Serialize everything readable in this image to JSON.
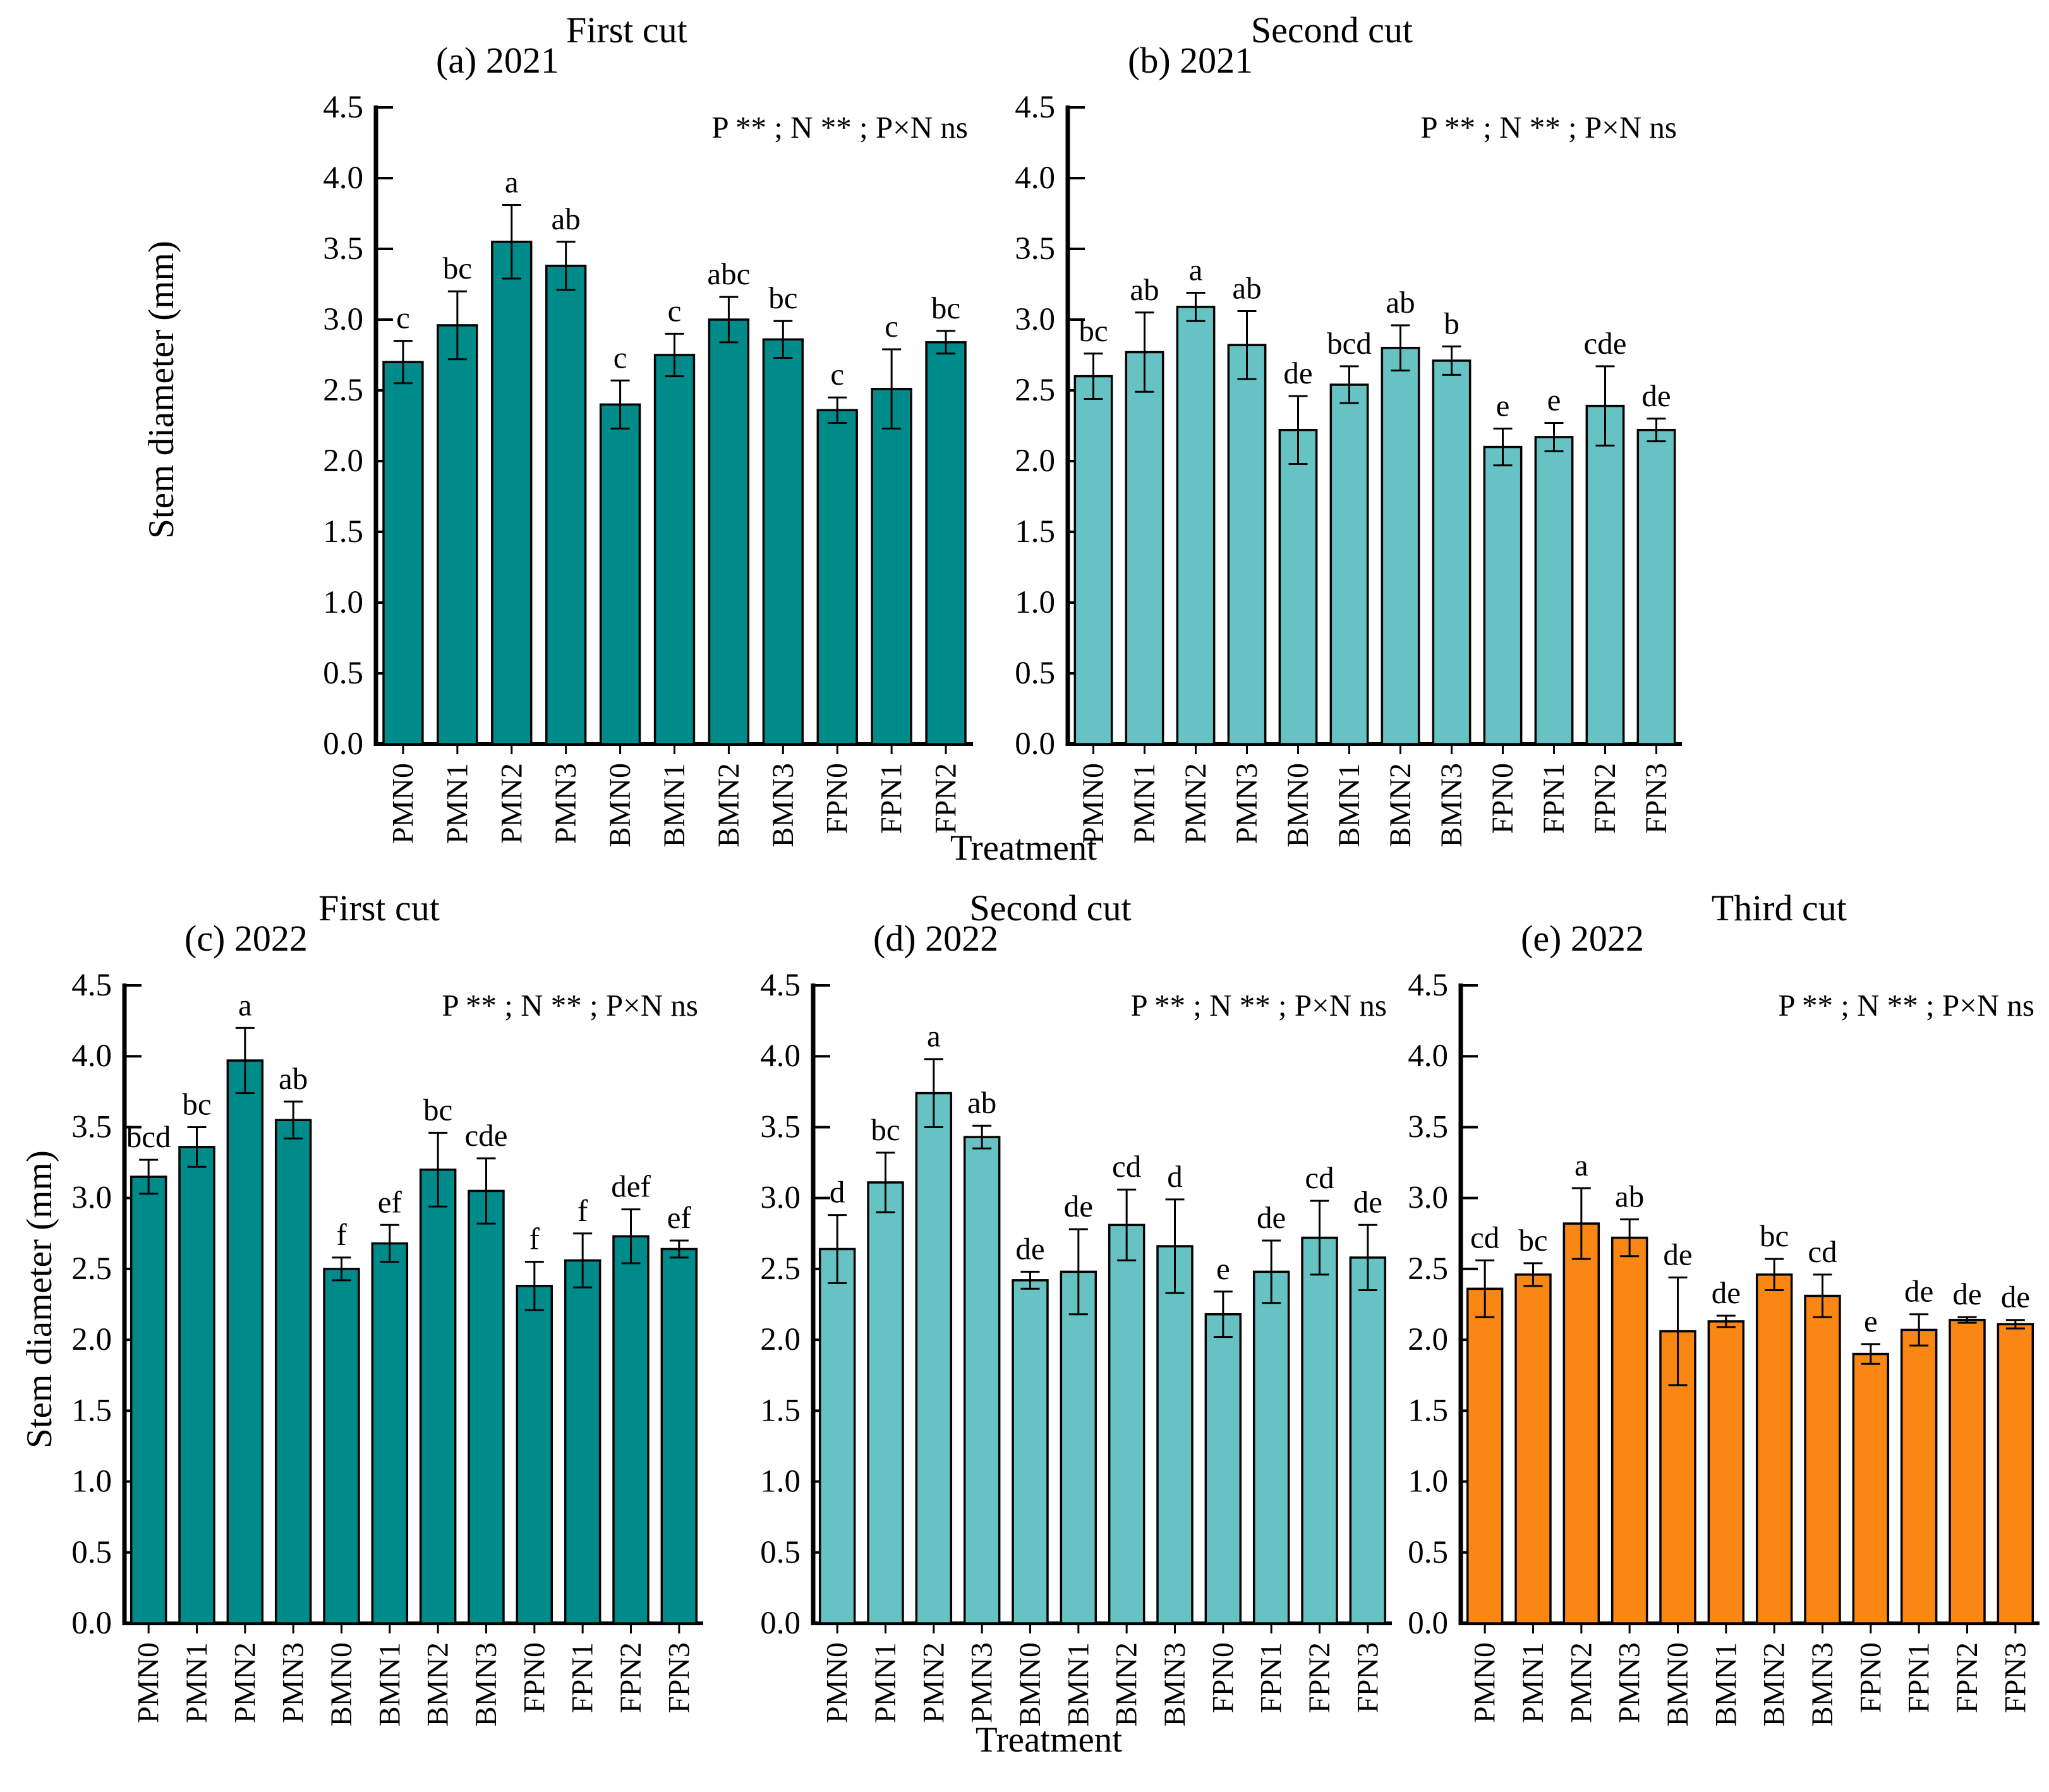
{
  "figure": {
    "ylabel": "Stem diameter (mm)",
    "xlabel": "Treatment"
  },
  "chart_data": [
    {
      "id": "a",
      "type": "bar",
      "panel_label": "(a) 2021",
      "title": "First cut",
      "annotation": "P ** ; N ** ; P×N ns",
      "bar_color": "#008B8B",
      "ylim": [
        0,
        4.5
      ],
      "ytick_step": 0.5,
      "ylabel": "Stem diameter (mm)",
      "xlabel": "Treatment",
      "categories": [
        "PMN0",
        "PMN1",
        "PMN2",
        "PMN3",
        "BMN0",
        "BMN1",
        "BMN2",
        "BMN3",
        "FPN0",
        "FPN1",
        "FPN2"
      ],
      "values": [
        2.7,
        2.96,
        3.55,
        3.38,
        2.4,
        2.75,
        3.0,
        2.86,
        2.36,
        2.51,
        2.84
      ],
      "errors": [
        0.15,
        0.24,
        0.26,
        0.17,
        0.17,
        0.15,
        0.16,
        0.13,
        0.09,
        0.28,
        0.08
      ],
      "letters": [
        "c",
        "bc",
        "a",
        "ab",
        "c",
        "c",
        "abc",
        "bc",
        "c",
        "c",
        "bc"
      ]
    },
    {
      "id": "b",
      "type": "bar",
      "panel_label": "(b) 2021",
      "title": "Second cut",
      "annotation": "P ** ; N ** ; P×N ns",
      "bar_color": "#67C3C3",
      "ylim": [
        0,
        4.5
      ],
      "ytick_step": 0.5,
      "xlabel": "Treatment",
      "categories": [
        "PMN0",
        "PMN1",
        "PMN2",
        "PMN3",
        "BMN0",
        "BMN1",
        "BMN2",
        "BMN3",
        "FPN0",
        "FPN1",
        "FPN2",
        "FPN3"
      ],
      "values": [
        2.6,
        2.77,
        3.09,
        2.82,
        2.22,
        2.54,
        2.8,
        2.71,
        2.1,
        2.17,
        2.39,
        2.22
      ],
      "errors": [
        0.16,
        0.28,
        0.1,
        0.24,
        0.24,
        0.13,
        0.16,
        0.1,
        0.13,
        0.1,
        0.28,
        0.08
      ],
      "letters": [
        "bc",
        "ab",
        "a",
        "ab",
        "de",
        "bcd",
        "ab",
        "b",
        "e",
        "e",
        "cde",
        "de"
      ]
    },
    {
      "id": "c",
      "type": "bar",
      "panel_label": "(c) 2022",
      "title": "First cut",
      "annotation": "P ** ; N ** ; P×N ns",
      "bar_color": "#008B8B",
      "ylim": [
        0,
        4.5
      ],
      "ytick_step": 0.5,
      "ylabel": "Stem diameter (mm)",
      "categories": [
        "PMN0",
        "PMN1",
        "PMN2",
        "PMN3",
        "BMN0",
        "BMN1",
        "BMN2",
        "BMN3",
        "FPN0",
        "FPN1",
        "FPN2",
        "FPN3"
      ],
      "values": [
        3.15,
        3.36,
        3.97,
        3.55,
        2.5,
        2.68,
        3.2,
        3.05,
        2.38,
        2.56,
        2.73,
        2.64
      ],
      "errors": [
        0.12,
        0.14,
        0.23,
        0.13,
        0.08,
        0.13,
        0.26,
        0.23,
        0.17,
        0.19,
        0.19,
        0.06
      ],
      "letters": [
        "bcd",
        "bc",
        "a",
        "ab",
        "f",
        "ef",
        "bc",
        "cde",
        "f",
        "f",
        "def",
        "ef"
      ]
    },
    {
      "id": "d",
      "type": "bar",
      "panel_label": "(d) 2022",
      "title": "Second cut",
      "annotation": "P ** ; N ** ; P×N ns",
      "bar_color": "#67C3C3",
      "ylim": [
        0,
        4.5
      ],
      "ytick_step": 0.5,
      "xlabel": "Treatment",
      "categories": [
        "PMN0",
        "PMN1",
        "PMN2",
        "PMN3",
        "BMN0",
        "BMN1",
        "BMN2",
        "BMN3",
        "FPN0",
        "FPN1",
        "FPN2",
        "FPN3"
      ],
      "values": [
        2.64,
        3.11,
        3.74,
        3.43,
        2.42,
        2.48,
        2.81,
        2.66,
        2.18,
        2.48,
        2.72,
        2.58
      ],
      "errors": [
        0.24,
        0.21,
        0.24,
        0.08,
        0.06,
        0.3,
        0.25,
        0.33,
        0.16,
        0.22,
        0.26,
        0.23
      ],
      "letters": [
        "d",
        "bc",
        "a",
        "ab",
        "de",
        "de",
        "cd",
        "d",
        "e",
        "de",
        "cd",
        "de"
      ]
    },
    {
      "id": "e",
      "type": "bar",
      "panel_label": "(e) 2022",
      "title": "Third cut",
      "annotation": "P ** ; N ** ; P×N ns",
      "bar_color": "#FA8614",
      "ylim": [
        0,
        4.5
      ],
      "ytick_step": 0.5,
      "categories": [
        "PMN0",
        "PMN1",
        "PMN2",
        "PMN3",
        "BMN0",
        "BMN1",
        "BMN2",
        "BMN3",
        "FPN0",
        "FPN1",
        "FPN2",
        "FPN3"
      ],
      "values": [
        2.36,
        2.46,
        2.82,
        2.72,
        2.06,
        2.13,
        2.46,
        2.31,
        1.9,
        2.07,
        2.14,
        2.11
      ],
      "errors": [
        0.2,
        0.08,
        0.25,
        0.13,
        0.38,
        0.04,
        0.11,
        0.15,
        0.07,
        0.11,
        0.02,
        0.03
      ],
      "letters": [
        "cd",
        "bc",
        "a",
        "ab",
        "de",
        "de",
        "bc",
        "cd",
        "e",
        "de",
        "de",
        "de"
      ]
    }
  ]
}
